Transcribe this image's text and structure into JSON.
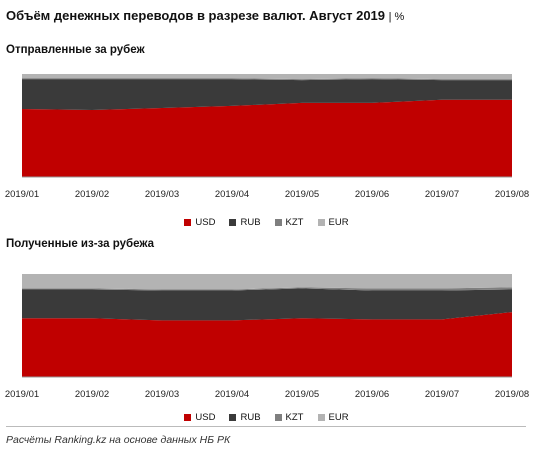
{
  "title": "Объём денежных переводов в разрезе валют. Август 2019",
  "title_unit": "| %",
  "footer": "Расчёты Ranking.kz на основе данных НБ РК",
  "colors": {
    "USD": "#c00000",
    "RUB": "#3a3a3a",
    "KZT": "#7f7f7f",
    "EUR": "#b3b3b3"
  },
  "chart_data": [
    {
      "type": "area",
      "title": "Отправленные  за рубеж",
      "stacked": true,
      "categories": [
        "2019/01",
        "2019/02",
        "2019/03",
        "2019/04",
        "2019/05",
        "2019/06",
        "2019/07",
        "2019/08"
      ],
      "series": [
        {
          "name": "USD",
          "values": [
            66,
            65,
            67,
            69,
            72,
            72,
            75,
            75
          ]
        },
        {
          "name": "RUB",
          "values": [
            29,
            30,
            28,
            26,
            22,
            23,
            19,
            19
          ]
        },
        {
          "name": "KZT",
          "values": [
            1,
            1,
            1,
            1,
            1,
            1,
            1,
            1
          ]
        },
        {
          "name": "EUR",
          "values": [
            4,
            4,
            4,
            4,
            5,
            4,
            5,
            5
          ]
        }
      ],
      "ylim": [
        0,
        100
      ],
      "legend": [
        "USD",
        "RUB",
        "KZT",
        "EUR"
      ],
      "legend_position": "bottom"
    },
    {
      "type": "area",
      "title": "Полученные  из-за рубежа",
      "stacked": true,
      "categories": [
        "2019/01",
        "2019/02",
        "2019/03",
        "2019/04",
        "2019/05",
        "2019/06",
        "2019/07",
        "2019/08"
      ],
      "series": [
        {
          "name": "USD",
          "values": [
            57,
            57,
            55,
            55,
            57,
            56,
            56,
            63
          ]
        },
        {
          "name": "RUB",
          "values": [
            28,
            28,
            29,
            29,
            29,
            28,
            28,
            22
          ]
        },
        {
          "name": "KZT",
          "values": [
            1,
            1,
            1,
            1,
            1,
            2,
            2,
            2
          ]
        },
        {
          "name": "EUR",
          "values": [
            14,
            14,
            15,
            15,
            13,
            14,
            14,
            13
          ]
        }
      ],
      "ylim": [
        0,
        100
      ],
      "legend": [
        "USD",
        "RUB",
        "KZT",
        "EUR"
      ],
      "legend_position": "bottom"
    }
  ]
}
